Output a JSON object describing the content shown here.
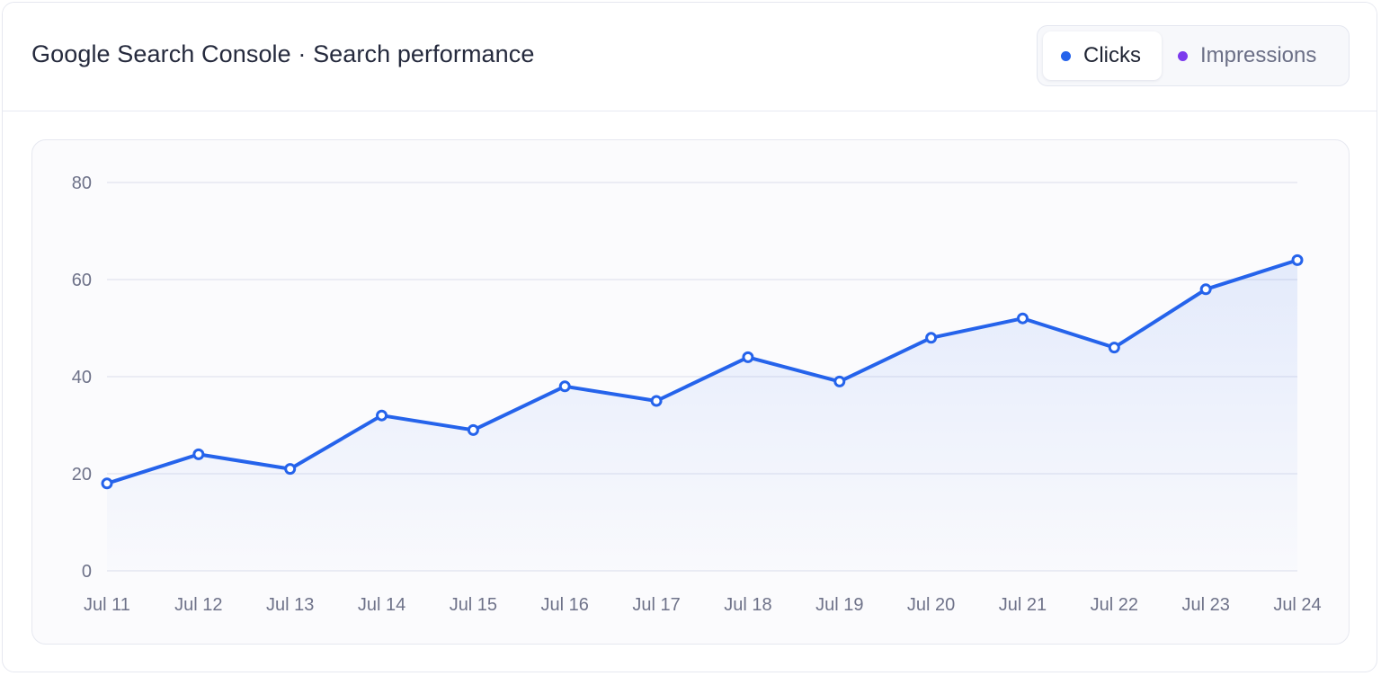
{
  "header": {
    "title": "Google Search Console · Search performance"
  },
  "toggle": {
    "options": [
      {
        "label": "Clicks",
        "color": "#2563eb",
        "active": true
      },
      {
        "label": "Impressions",
        "color": "#7c3aed",
        "active": false
      }
    ]
  },
  "colors": {
    "line": "#2563eb",
    "grid": "#e6e8f1",
    "tick_text": "#6e7289"
  },
  "chart_data": {
    "type": "area",
    "categories": [
      "Jul 11",
      "Jul 12",
      "Jul 13",
      "Jul 14",
      "Jul 15",
      "Jul 16",
      "Jul 17",
      "Jul 18",
      "Jul 19",
      "Jul 20",
      "Jul 21",
      "Jul 22",
      "Jul 23",
      "Jul 24"
    ],
    "series": [
      {
        "name": "Clicks",
        "values": [
          18,
          24,
          21,
          32,
          29,
          38,
          35,
          44,
          39,
          48,
          52,
          46,
          58,
          64
        ]
      }
    ],
    "yticks": [
      0,
      20,
      40,
      60,
      80
    ],
    "ylim": [
      0,
      80
    ],
    "grid": true,
    "title": "",
    "xlabel": "",
    "ylabel": ""
  }
}
